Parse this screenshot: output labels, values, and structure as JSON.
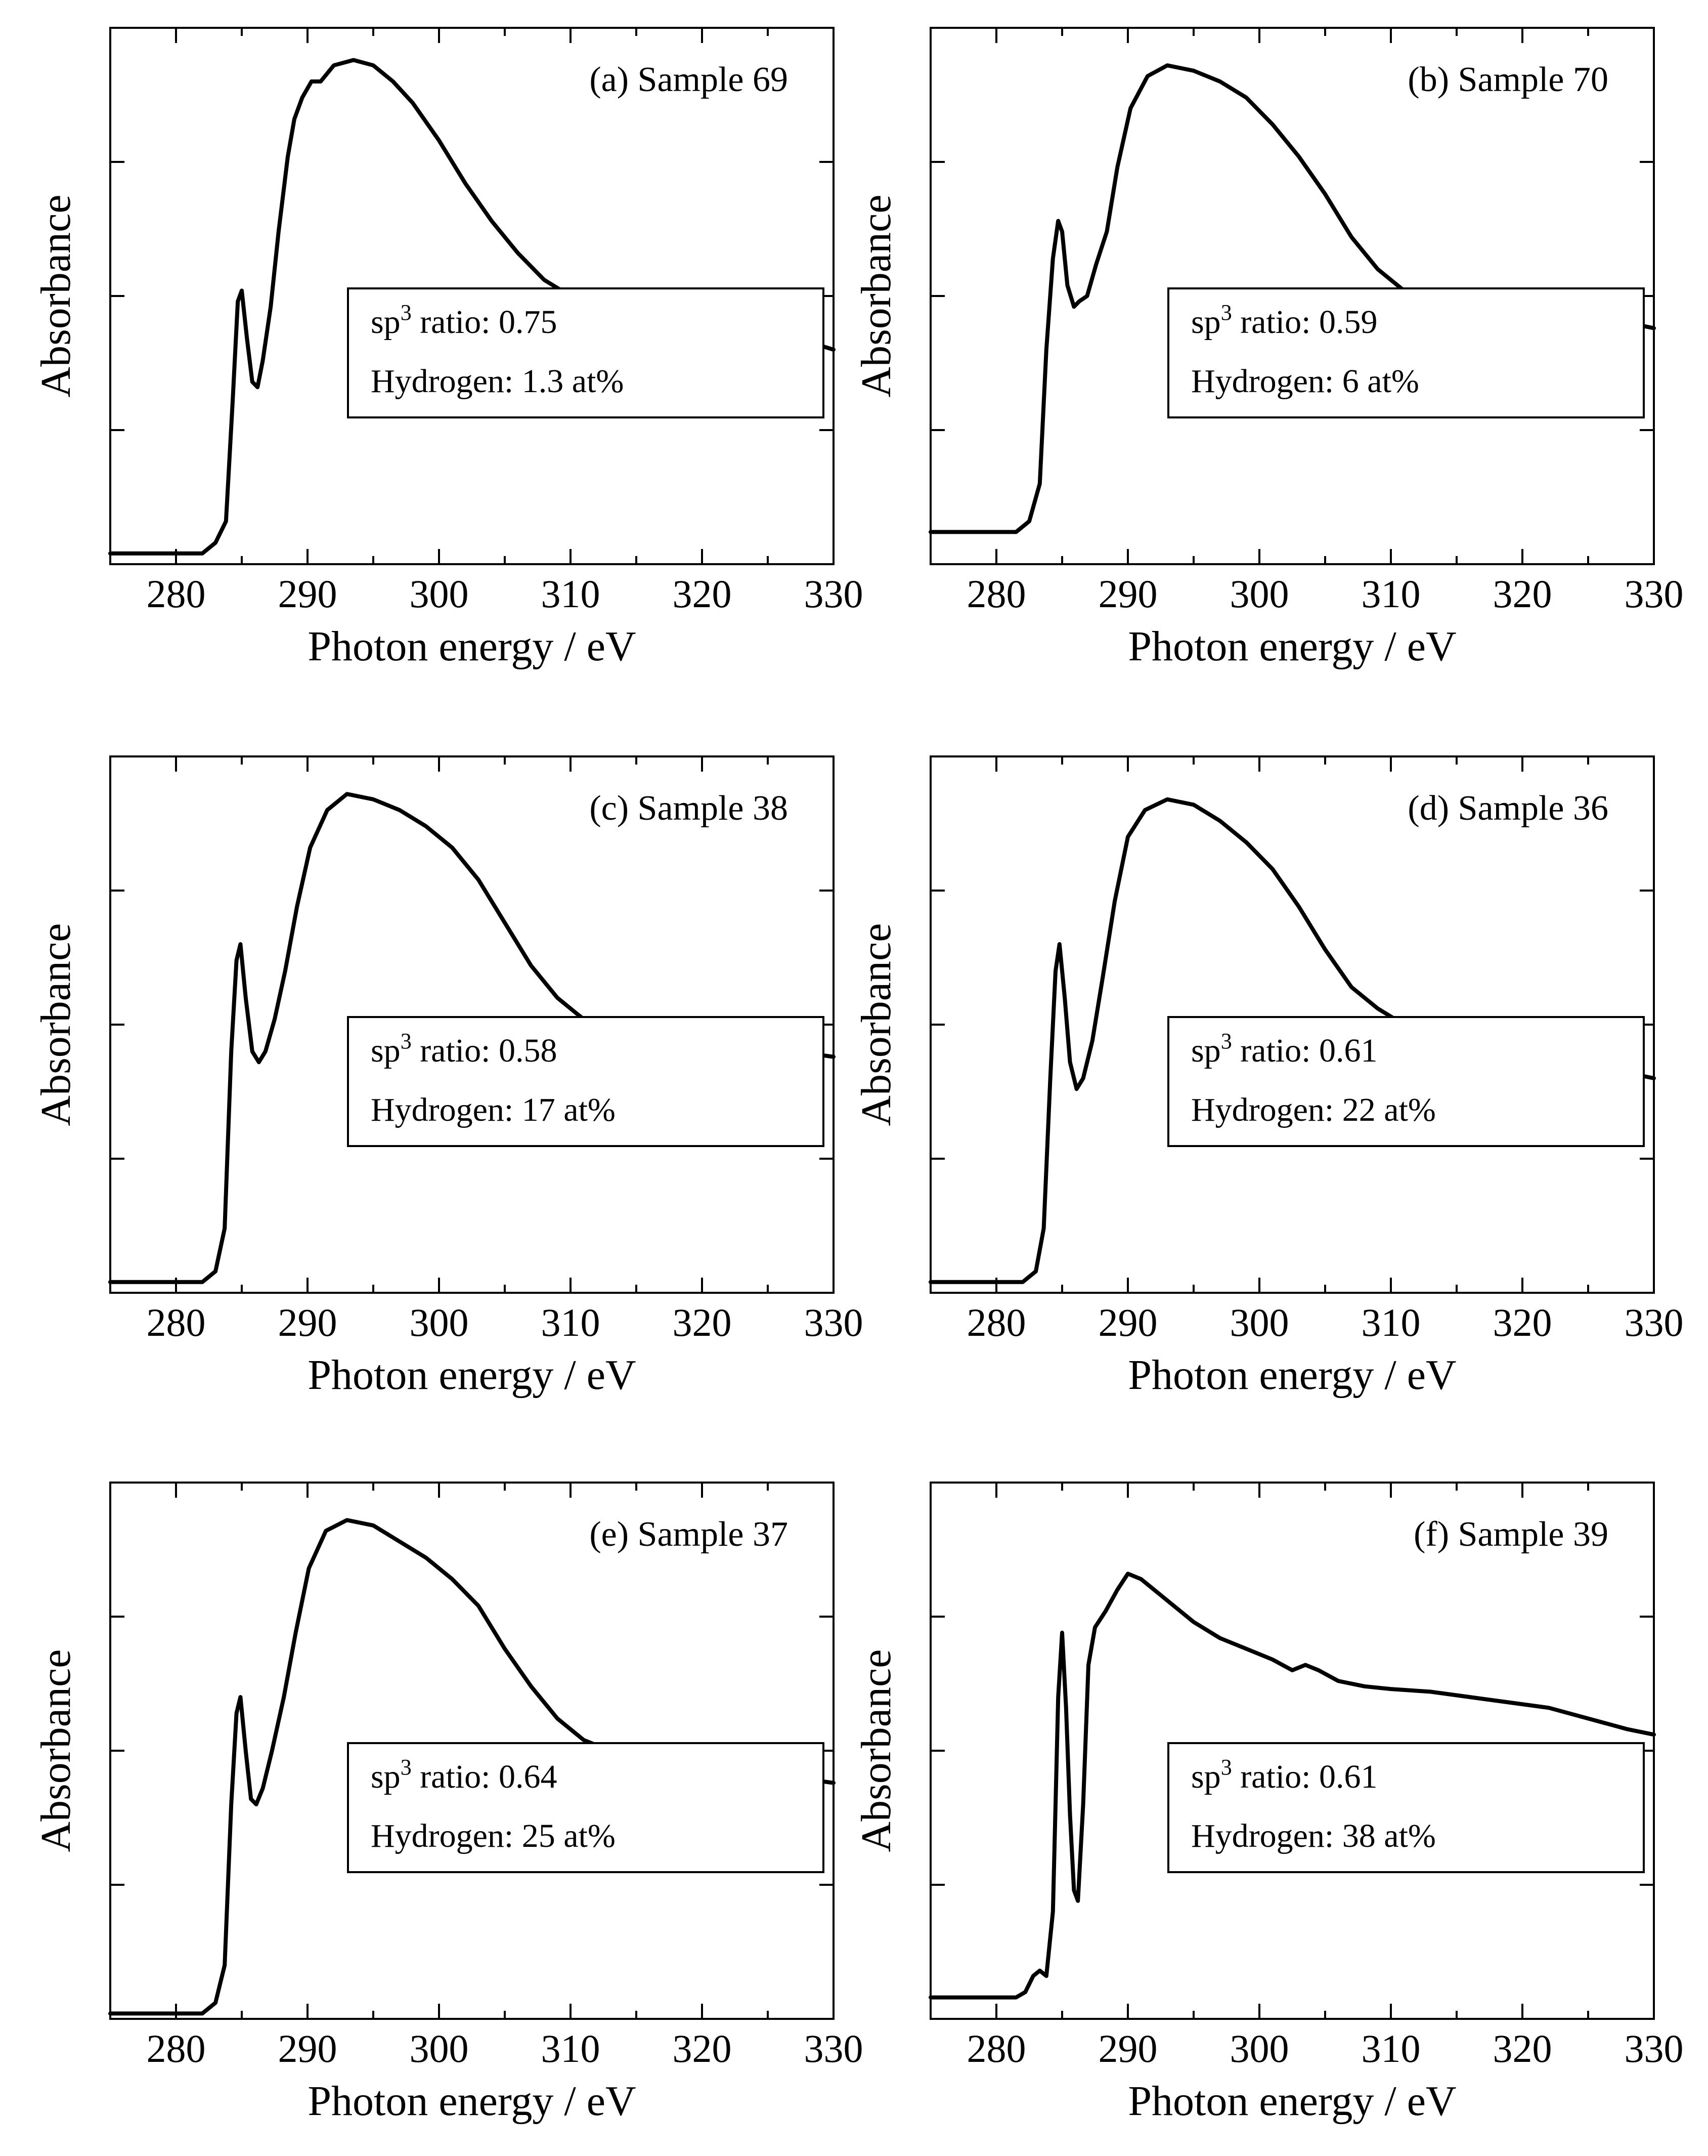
{
  "chart_data": [
    {
      "type": "line",
      "panel": "(a)",
      "title": "Sample 69",
      "xlabel": "Photon energy / eV",
      "ylabel": "Absorbance",
      "xlim": [
        275,
        330
      ],
      "ylim": [
        0,
        1
      ],
      "xticks": [
        280,
        290,
        300,
        310,
        320,
        330
      ],
      "box": {
        "sp3_prefix": "sp",
        "sp3_sup": "3",
        "sp3_text": " ratio: 0.75",
        "hydrogen": "Hydrogen: 1.3 at%"
      },
      "x": [
        275,
        282,
        283,
        283.8,
        284.3,
        284.7,
        285.0,
        285.4,
        285.8,
        286.2,
        286.6,
        287.2,
        287.8,
        288.5,
        289.0,
        289.6,
        290.3,
        291.0,
        292.0,
        293.5,
        295.0,
        296.5,
        298.0,
        300.0,
        302.0,
        304.0,
        306.0,
        308.0,
        310.0,
        312.0,
        314.0,
        316.0,
        318.0,
        320.0,
        322.0,
        324.0,
        326.0,
        328.0,
        330.0
      ],
      "y": [
        0.02,
        0.02,
        0.04,
        0.08,
        0.3,
        0.49,
        0.51,
        0.42,
        0.34,
        0.33,
        0.38,
        0.48,
        0.62,
        0.76,
        0.83,
        0.87,
        0.9,
        0.9,
        0.93,
        0.94,
        0.93,
        0.9,
        0.86,
        0.79,
        0.71,
        0.64,
        0.58,
        0.53,
        0.5,
        0.48,
        0.47,
        0.465,
        0.46,
        0.455,
        0.45,
        0.44,
        0.43,
        0.415,
        0.4
      ]
    },
    {
      "type": "line",
      "panel": "(b)",
      "title": "Sample 70",
      "xlabel": "Photon energy / eV",
      "ylabel": "Absorbance",
      "xlim": [
        275,
        330
      ],
      "ylim": [
        0,
        1
      ],
      "xticks": [
        280,
        290,
        300,
        310,
        320,
        330
      ],
      "box": {
        "sp3_prefix": "sp",
        "sp3_sup": "3",
        "sp3_text": " ratio: 0.59",
        "hydrogen": "Hydrogen: 6 at%"
      },
      "x": [
        275,
        281.5,
        282.5,
        283.3,
        283.8,
        284.3,
        284.7,
        285.0,
        285.4,
        285.9,
        286.3,
        286.9,
        287.6,
        288.4,
        289.2,
        290.2,
        291.5,
        293.0,
        295.0,
        297.0,
        299.0,
        301.0,
        303.0,
        305.0,
        307.0,
        309.0,
        311.0,
        313.0,
        315.0,
        318.0,
        320.0,
        323.0,
        326.0,
        330.0
      ],
      "y": [
        0.06,
        0.06,
        0.08,
        0.15,
        0.4,
        0.57,
        0.64,
        0.62,
        0.52,
        0.48,
        0.49,
        0.5,
        0.56,
        0.62,
        0.74,
        0.85,
        0.91,
        0.93,
        0.92,
        0.9,
        0.87,
        0.82,
        0.76,
        0.69,
        0.61,
        0.55,
        0.51,
        0.49,
        0.48,
        0.475,
        0.47,
        0.47,
        0.46,
        0.44
      ]
    },
    {
      "type": "line",
      "panel": "(c)",
      "title": "Sample 38",
      "xlabel": "Photon energy / eV",
      "ylabel": "Absorbance",
      "xlim": [
        275,
        330
      ],
      "ylim": [
        0,
        1
      ],
      "xticks": [
        280,
        290,
        300,
        310,
        320,
        330
      ],
      "box": {
        "sp3_prefix": "sp",
        "sp3_sup": "3",
        "sp3_text": " ratio: 0.58",
        "hydrogen": "Hydrogen: 17 at%"
      },
      "x": [
        275,
        282,
        283,
        283.7,
        284.2,
        284.6,
        284.9,
        285.3,
        285.8,
        286.3,
        286.8,
        287.5,
        288.3,
        289.2,
        290.2,
        291.5,
        293.0,
        295.0,
        297.0,
        299.0,
        301.0,
        303.0,
        305.0,
        307.0,
        309.0,
        311.0,
        313.0,
        315.0,
        318.0,
        321.0,
        324.0,
        327.0,
        330.0
      ],
      "y": [
        0.02,
        0.02,
        0.04,
        0.12,
        0.45,
        0.62,
        0.65,
        0.55,
        0.45,
        0.43,
        0.45,
        0.51,
        0.6,
        0.72,
        0.83,
        0.9,
        0.93,
        0.92,
        0.9,
        0.87,
        0.83,
        0.77,
        0.69,
        0.61,
        0.55,
        0.51,
        0.49,
        0.48,
        0.47,
        0.465,
        0.46,
        0.45,
        0.44
      ]
    },
    {
      "type": "line",
      "panel": "(d)",
      "title": "Sample 36",
      "xlabel": "Photon energy / eV",
      "ylabel": "Absorbance",
      "xlim": [
        275,
        330
      ],
      "ylim": [
        0,
        1
      ],
      "xticks": [
        280,
        290,
        300,
        310,
        320,
        330
      ],
      "box": {
        "sp3_prefix": "sp",
        "sp3_sup": "3",
        "sp3_text": " ratio: 0.61",
        "hydrogen": "Hydrogen: 22 at%"
      },
      "x": [
        275,
        282,
        283,
        283.6,
        284.1,
        284.5,
        284.8,
        285.2,
        285.6,
        286.1,
        286.6,
        287.3,
        288.1,
        289.0,
        290.0,
        291.3,
        293.0,
        295.0,
        297.0,
        299.0,
        301.0,
        303.0,
        305.0,
        307.0,
        309.0,
        311.0,
        313.0,
        316.0,
        319.0,
        322.0,
        325.0,
        328.0,
        330.0
      ],
      "y": [
        0.02,
        0.02,
        0.04,
        0.12,
        0.4,
        0.6,
        0.65,
        0.55,
        0.43,
        0.38,
        0.4,
        0.47,
        0.59,
        0.73,
        0.85,
        0.9,
        0.92,
        0.91,
        0.88,
        0.84,
        0.79,
        0.72,
        0.64,
        0.57,
        0.53,
        0.5,
        0.48,
        0.46,
        0.45,
        0.44,
        0.43,
        0.41,
        0.4
      ]
    },
    {
      "type": "line",
      "panel": "(e)",
      "title": "Sample 37",
      "xlabel": "Photon energy / eV",
      "ylabel": "Absorbance",
      "xlim": [
        275,
        330
      ],
      "ylim": [
        0,
        1
      ],
      "xticks": [
        280,
        290,
        300,
        310,
        320,
        330
      ],
      "box": {
        "sp3_prefix": "sp",
        "sp3_sup": "3",
        "sp3_text": " ratio: 0.64",
        "hydrogen": "Hydrogen: 25 at%"
      },
      "x": [
        275,
        282,
        283,
        283.7,
        284.2,
        284.6,
        284.9,
        285.3,
        285.7,
        286.1,
        286.6,
        287.3,
        288.2,
        289.1,
        290.1,
        291.4,
        293.0,
        295.0,
        297.0,
        299.0,
        301.0,
        303.0,
        305.0,
        307.0,
        309.0,
        311.0,
        313.0,
        315.0,
        318.0,
        321.0,
        324.0,
        327.0,
        330.0
      ],
      "y": [
        0.01,
        0.01,
        0.03,
        0.1,
        0.4,
        0.57,
        0.6,
        0.5,
        0.41,
        0.4,
        0.43,
        0.5,
        0.6,
        0.72,
        0.84,
        0.91,
        0.93,
        0.92,
        0.89,
        0.86,
        0.82,
        0.77,
        0.69,
        0.62,
        0.56,
        0.52,
        0.5,
        0.49,
        0.48,
        0.47,
        0.46,
        0.45,
        0.44
      ]
    },
    {
      "type": "line",
      "panel": "(f)",
      "title": "Sample 39",
      "xlabel": "Photon energy / eV",
      "ylabel": "Absorbance",
      "xlim": [
        275,
        330
      ],
      "ylim": [
        0,
        1
      ],
      "xticks": [
        280,
        290,
        300,
        310,
        320,
        330
      ],
      "box": {
        "sp3_prefix": "sp",
        "sp3_sup": "3",
        "sp3_text": " ratio: 0.61",
        "hydrogen": "Hydrogen: 38 at%"
      },
      "x": [
        275,
        281.5,
        282.2,
        282.8,
        283.3,
        283.8,
        284.3,
        284.7,
        285.0,
        285.3,
        285.6,
        285.9,
        286.2,
        286.6,
        287.0,
        287.5,
        288.3,
        289.2,
        290.0,
        291.0,
        292.0,
        293.5,
        295.0,
        297.0,
        299.0,
        301.0,
        302.5,
        303.5,
        304.5,
        306.0,
        308.0,
        310.0,
        313.0,
        316.0,
        319.0,
        322.0,
        325.0,
        328.0,
        330.0
      ],
      "y": [
        0.04,
        0.04,
        0.05,
        0.08,
        0.09,
        0.08,
        0.2,
        0.6,
        0.72,
        0.58,
        0.38,
        0.24,
        0.22,
        0.4,
        0.66,
        0.73,
        0.76,
        0.8,
        0.83,
        0.82,
        0.8,
        0.77,
        0.74,
        0.71,
        0.69,
        0.67,
        0.65,
        0.66,
        0.65,
        0.63,
        0.62,
        0.615,
        0.61,
        0.6,
        0.59,
        0.58,
        0.56,
        0.54,
        0.53
      ]
    }
  ]
}
